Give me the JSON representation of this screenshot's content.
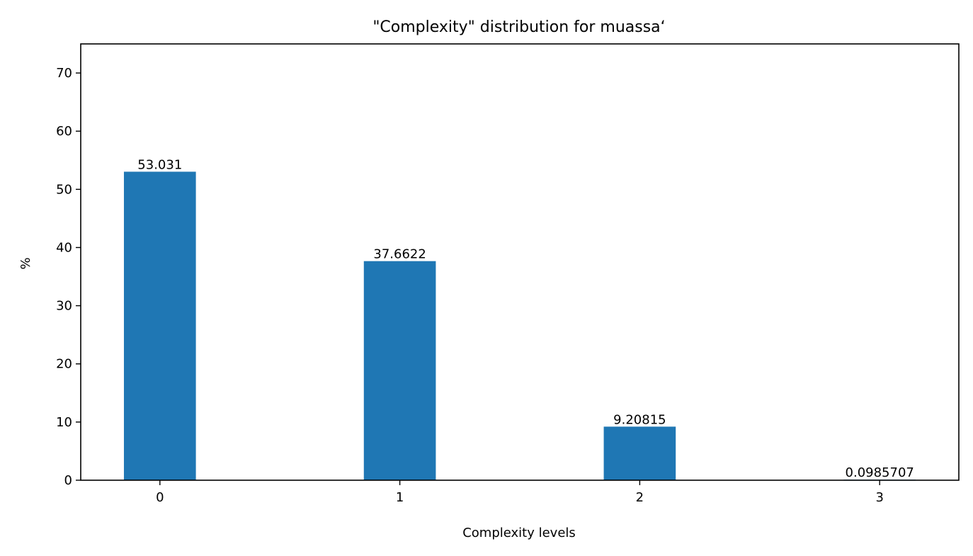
{
  "chart_data": {
    "type": "bar",
    "title": "\"Complexity\" distribution for muassa‘",
    "xlabel": "Complexity levels",
    "ylabel": "%",
    "categories": [
      "0",
      "1",
      "2",
      "3"
    ],
    "values": [
      53.031,
      37.6622,
      9.20815,
      0.0985707
    ],
    "data_labels": [
      "53.031",
      "37.6622",
      "9.20815",
      "0.0985707"
    ],
    "ylim": [
      0,
      75
    ],
    "yticks": [
      0,
      10,
      20,
      30,
      40,
      50,
      60,
      70
    ],
    "grid": false,
    "bar_color": "#1f77b4"
  }
}
